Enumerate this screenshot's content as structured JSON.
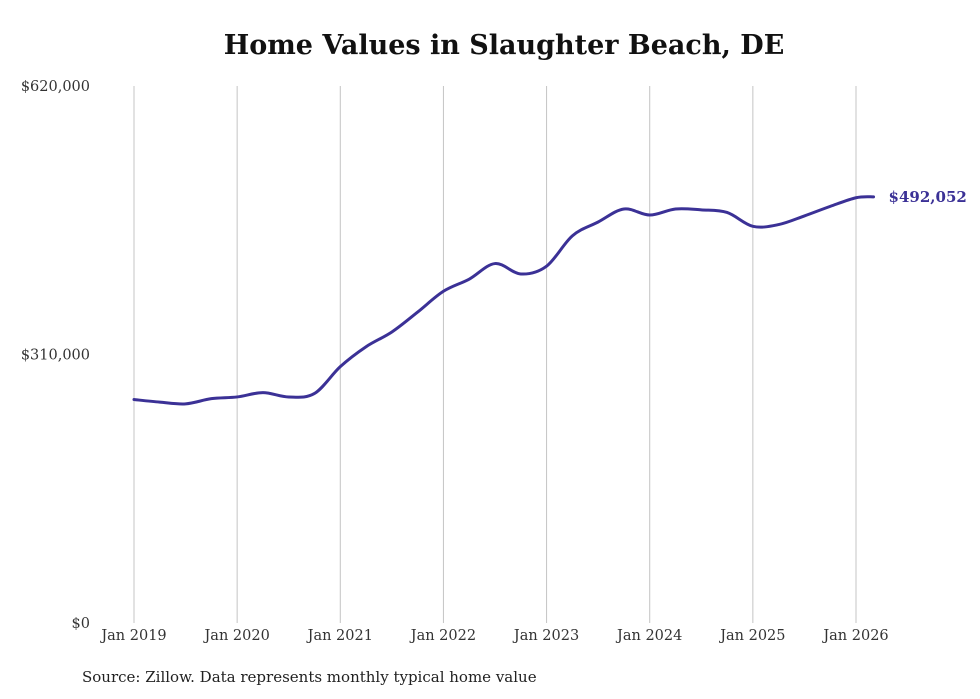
{
  "chart_data": {
    "type": "line",
    "title": "Home Values in Slaughter Beach, DE",
    "source": "Source: Zillow. Data represents monthly typical home value",
    "xlabel": "",
    "ylabel": "",
    "ylim": [
      0,
      620000
    ],
    "y_ticks": [
      0,
      310000,
      620000
    ],
    "y_tick_labels": [
      "$0",
      "$310,000",
      "$620,000"
    ],
    "x_tick_labels": [
      "Jan 2019",
      "Jan 2020",
      "Jan 2021",
      "Jan 2022",
      "Jan 2023",
      "Jan 2024",
      "Jan 2025",
      "Jan 2026"
    ],
    "x_tick_years": [
      2019,
      2020,
      2021,
      2022,
      2023,
      2024,
      2025,
      2026
    ],
    "grid": "vertical",
    "line_color": "#3b3196",
    "end_label": "$492,052",
    "series": [
      {
        "name": "Typical home value",
        "points": [
          [
            2019.0,
            258000
          ],
          [
            2019.25,
            255000
          ],
          [
            2019.5,
            253000
          ],
          [
            2019.75,
            259000
          ],
          [
            2020.0,
            261000
          ],
          [
            2020.25,
            266000
          ],
          [
            2020.5,
            261000
          ],
          [
            2020.75,
            265000
          ],
          [
            2021.0,
            296000
          ],
          [
            2021.25,
            319000
          ],
          [
            2021.5,
            336000
          ],
          [
            2021.75,
            359000
          ],
          [
            2022.0,
            383000
          ],
          [
            2022.25,
            397000
          ],
          [
            2022.5,
            415000
          ],
          [
            2022.75,
            403000
          ],
          [
            2023.0,
            412000
          ],
          [
            2023.25,
            447000
          ],
          [
            2023.5,
            463000
          ],
          [
            2023.75,
            478000
          ],
          [
            2024.0,
            471000
          ],
          [
            2024.25,
            478000
          ],
          [
            2024.5,
            477000
          ],
          [
            2024.75,
            474000
          ],
          [
            2025.0,
            458000
          ],
          [
            2025.25,
            460000
          ],
          [
            2025.5,
            470000
          ],
          [
            2025.75,
            481000
          ],
          [
            2026.0,
            491000
          ],
          [
            2026.17,
            492052
          ]
        ]
      }
    ]
  }
}
